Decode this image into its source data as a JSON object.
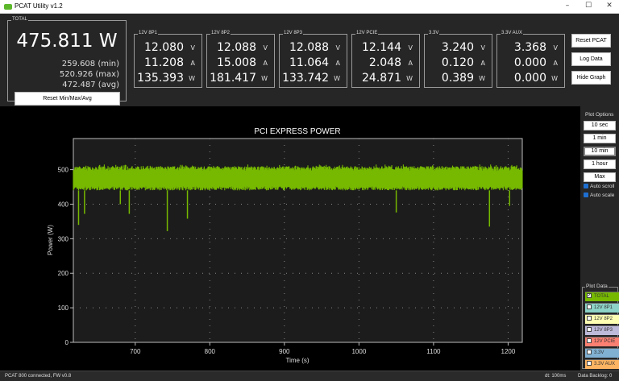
{
  "window": {
    "title": "PCAT Utility v1.2",
    "controls": [
      "–",
      "☐",
      "✕"
    ]
  },
  "total": {
    "label": "TOTAL",
    "value": "475.811 W",
    "min": "259.608 (min)",
    "max": "520.926 (max)",
    "avg": "472.487 (avg)",
    "reset_label": "Reset Min/Max/Avg"
  },
  "rails": [
    {
      "label": "12V 8P1",
      "v": "12.080",
      "a": "11.208",
      "w": "135.393"
    },
    {
      "label": "12V 8P2",
      "v": "12.088",
      "a": "15.008",
      "w": "181.417"
    },
    {
      "label": "12V 8P3",
      "v": "12.088",
      "a": "11.064",
      "w": "133.742"
    },
    {
      "label": "12V PCIE",
      "v": "12.144",
      "a": "2.048",
      "w": "24.871"
    },
    {
      "label": "3.3V",
      "v": "3.240",
      "a": "0.120",
      "w": "0.389"
    },
    {
      "label": "3.3V AUX",
      "v": "3.368",
      "a": "0.000",
      "w": "0.000"
    }
  ],
  "units": {
    "v": "V",
    "a": "A",
    "w": "W"
  },
  "buttons": {
    "reset": "Reset PCAT",
    "log": "Log Data",
    "hide": "Hide Graph"
  },
  "plot_options": {
    "title": "Plot Options",
    "ranges": [
      "10 sec",
      "1 min",
      "10 min",
      "1 hour",
      "Max"
    ],
    "selected": "10 min",
    "auto_scroll": "Auto scroll",
    "auto_scale": "Auto scale",
    "auto_scroll_checked": true,
    "auto_scale_checked": true
  },
  "plot_data": {
    "title": "Plot Data",
    "items": [
      {
        "label": "TOTAL",
        "color": "#76b900",
        "checked": true
      },
      {
        "label": "12V 8P1",
        "color": "#8dd3c7",
        "checked": false
      },
      {
        "label": "12V 8P2",
        "color": "#ffffb3",
        "checked": false
      },
      {
        "label": "12V 8P3",
        "color": "#bebada",
        "checked": false
      },
      {
        "label": "12V PCIE",
        "color": "#fb8072",
        "checked": false
      },
      {
        "label": "3.3V",
        "color": "#80b1d3",
        "checked": false
      },
      {
        "label": "3.3V AUX",
        "color": "#fdb462",
        "checked": false
      }
    ]
  },
  "status": {
    "left": "PCAT 800 connected, FW v0.8",
    "dt": "dt: 100ms",
    "backlog": "Data Backlog: 0"
  },
  "chart_data": {
    "type": "line",
    "title": "PCI EXPRESS POWER",
    "xlabel": "Time (s)",
    "ylabel": "Power (W)",
    "xlim": [
      617,
      1219
    ],
    "ylim": [
      0,
      590
    ],
    "xticks": [
      700,
      800,
      900,
      1000,
      1100,
      1200
    ],
    "yticks": [
      0,
      100,
      200,
      300,
      400,
      500
    ],
    "grid": true,
    "series_color": "#76b900",
    "series": [
      {
        "typical_range": [
          440,
          515
        ],
        "dips": [
          [
            624,
            340
          ],
          [
            632,
            372
          ],
          [
            680,
            400
          ],
          [
            692,
            372
          ],
          [
            743,
            322
          ],
          [
            770,
            358
          ],
          [
            1050,
            376
          ],
          [
            1175,
            335
          ],
          [
            1202,
            395
          ]
        ]
      }
    ]
  }
}
